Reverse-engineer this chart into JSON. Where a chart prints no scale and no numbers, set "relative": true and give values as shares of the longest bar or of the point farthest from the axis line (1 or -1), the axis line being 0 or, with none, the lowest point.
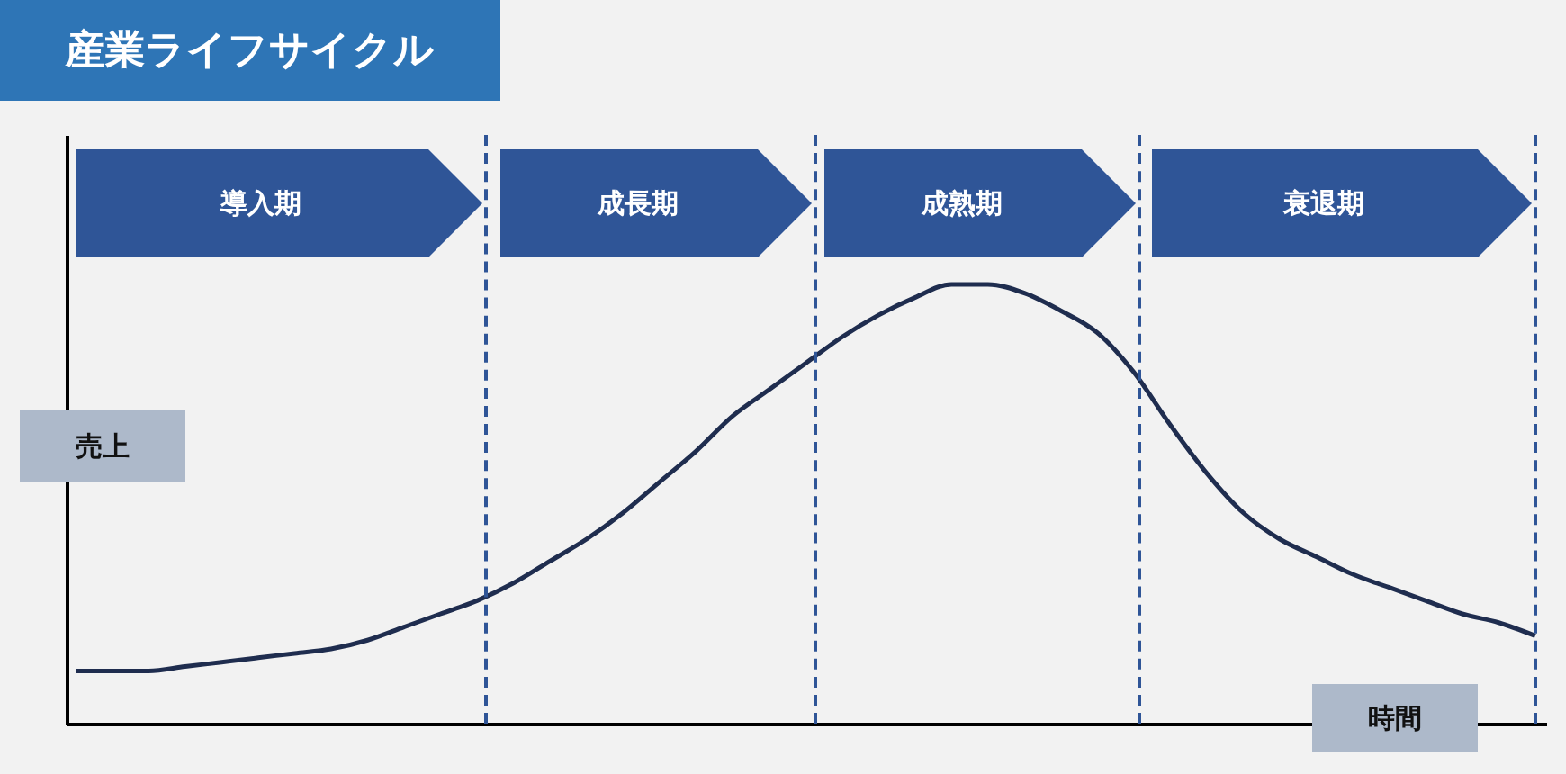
{
  "chart_data": {
    "type": "line",
    "title": "産業ライフサイクル",
    "xlabel": "時間",
    "ylabel": "売上",
    "relative": true,
    "categories": [
      null,
      null,
      null,
      null,
      null,
      null,
      null,
      null,
      null,
      null,
      null,
      null,
      null,
      null,
      null,
      null,
      null,
      null,
      null,
      null,
      null,
      null,
      null,
      null,
      null,
      null,
      null,
      null,
      null,
      null,
      null,
      null,
      null,
      null,
      null,
      null,
      null,
      null,
      null,
      null,
      null
    ],
    "series": [
      {
        "color": "#1f2d4f",
        "values": [
          0.12,
          0.12,
          0.12,
          0.13,
          0.14,
          0.15,
          0.16,
          0.17,
          0.19,
          0.22,
          0.25,
          0.28,
          0.32,
          0.37,
          0.42,
          0.48,
          0.55,
          0.62,
          0.7,
          0.76,
          0.82,
          0.88,
          0.93,
          0.97,
          1.0,
          1.0,
          0.98,
          0.94,
          0.89,
          0.8,
          0.68,
          0.57,
          0.48,
          0.42,
          0.38,
          0.34,
          0.31,
          0.28,
          0.25,
          0.23,
          0.2
        ]
      }
    ],
    "annotations": [
      "導入期",
      "成長期",
      "成熟期",
      "衰退期"
    ]
  }
}
